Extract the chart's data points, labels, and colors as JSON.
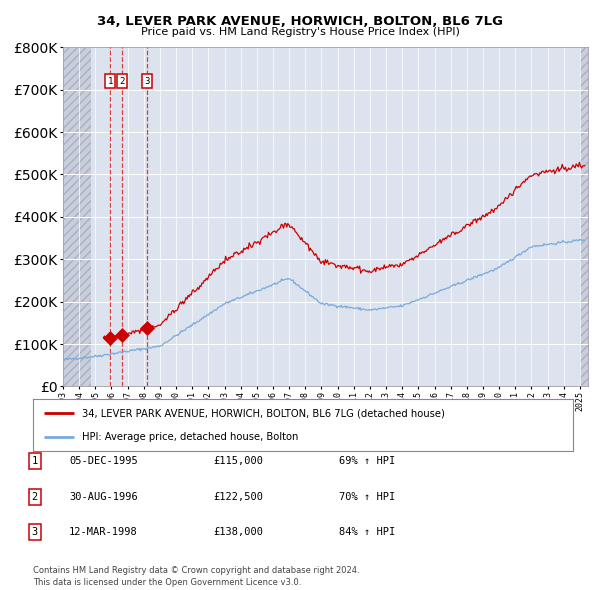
{
  "title1": "34, LEVER PARK AVENUE, HORWICH, BOLTON, BL6 7LG",
  "title2": "Price paid vs. HM Land Registry's House Price Index (HPI)",
  "legend_label1": "34, LEVER PARK AVENUE, HORWICH, BOLTON, BL6 7LG (detached house)",
  "legend_label2": "HPI: Average price, detached house, Bolton",
  "footer": "Contains HM Land Registry data © Crown copyright and database right 2024.\nThis data is licensed under the Open Government Licence v3.0.",
  "sale_color": "#cc0000",
  "hpi_color": "#7aaadd",
  "background_plot": "#dce3ef",
  "background_hatch": "#c8cedc",
  "sales": [
    {
      "label": "1",
      "date_x": 1995.92,
      "price": 115000
    },
    {
      "label": "2",
      "date_x": 1996.66,
      "price": 122500
    },
    {
      "label": "3",
      "date_x": 1998.19,
      "price": 138000
    }
  ],
  "table_rows": [
    {
      "num": "1",
      "date": "05-DEC-1995",
      "price": "£115,000",
      "hpi": "69% ↑ HPI"
    },
    {
      "num": "2",
      "date": "30-AUG-1996",
      "price": "£122,500",
      "hpi": "70% ↑ HPI"
    },
    {
      "num": "3",
      "date": "12-MAR-1998",
      "price": "£138,000",
      "hpi": "84% ↑ HPI"
    }
  ],
  "xmin": 1993.0,
  "xmax": 2025.5,
  "ymin": 0,
  "ymax": 800000,
  "hatch_xmin": 1993.0,
  "hatch_xmax": 1994.75,
  "hatch_xright": 2025.0
}
